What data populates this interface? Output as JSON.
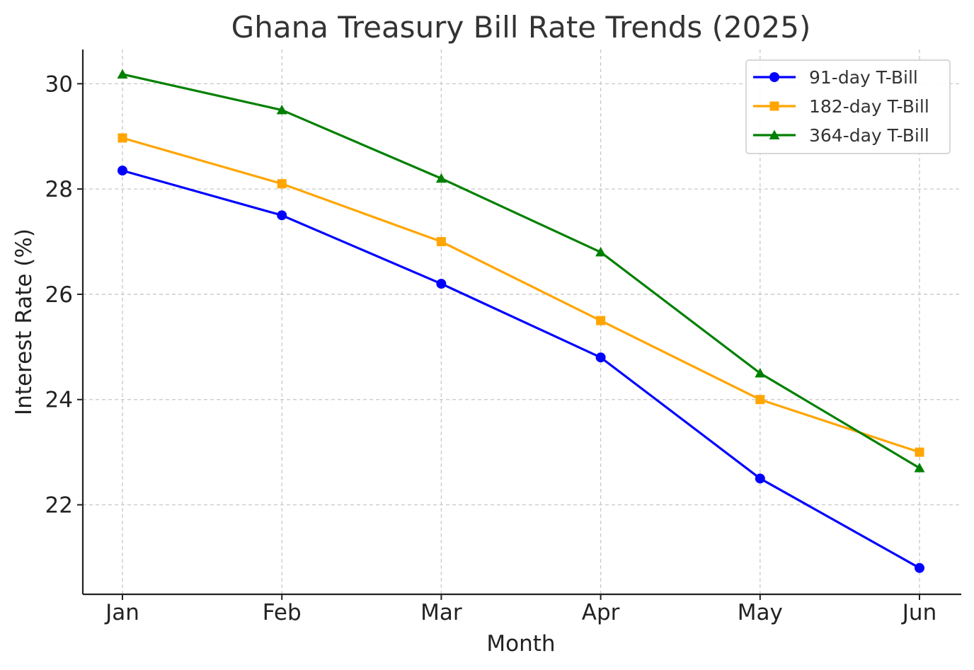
{
  "chart_data": {
    "type": "line",
    "title": "Ghana Treasury Bill Rate Trends (2025)",
    "xlabel": "Month",
    "ylabel": "Interest Rate (%)",
    "categories": [
      "Jan",
      "Feb",
      "Mar",
      "Apr",
      "May",
      "Jun"
    ],
    "yticks": [
      22,
      24,
      26,
      28,
      30
    ],
    "ylim": [
      20.3,
      30.65
    ],
    "grid": true,
    "legend_position": "top-right",
    "series": [
      {
        "name": "91-day T-Bill",
        "color": "#0000ff",
        "marker": "circle",
        "values": [
          28.35,
          27.5,
          26.2,
          24.8,
          22.5,
          20.8
        ]
      },
      {
        "name": "182-day T-Bill",
        "color": "#ffa500",
        "marker": "square",
        "values": [
          28.97,
          28.1,
          27.0,
          25.5,
          24.0,
          23.0
        ]
      },
      {
        "name": "364-day T-Bill",
        "color": "#008000",
        "marker": "triangle",
        "values": [
          30.18,
          29.5,
          28.2,
          26.8,
          24.5,
          22.7
        ]
      }
    ]
  }
}
